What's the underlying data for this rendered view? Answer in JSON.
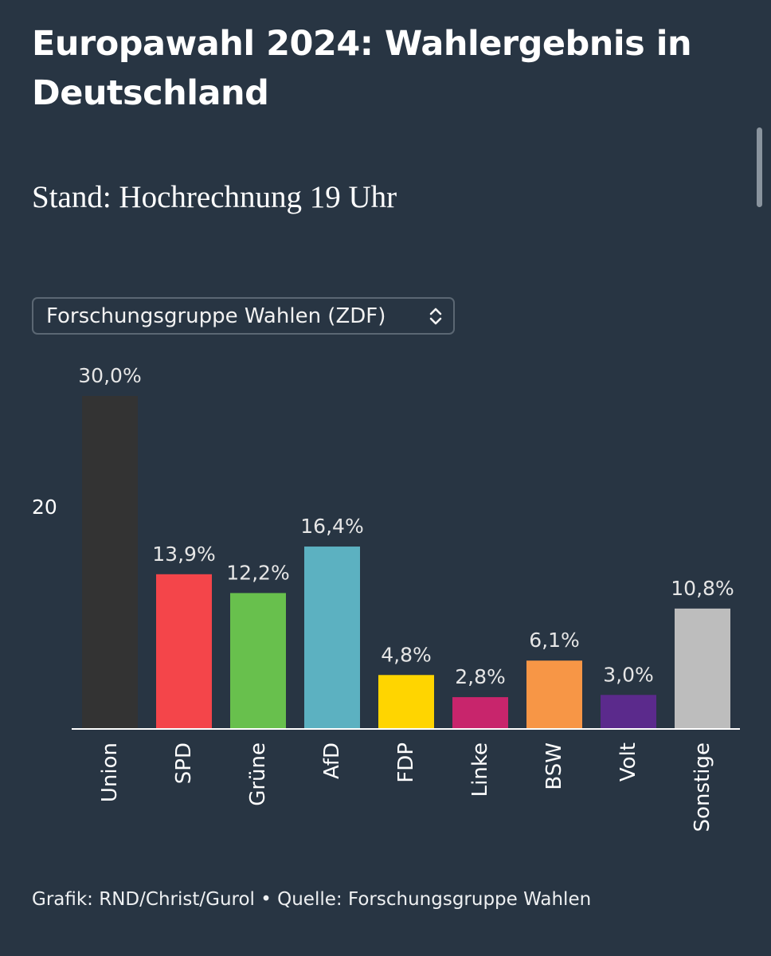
{
  "header": {
    "title": "Europawahl 2024: Wahlergebnis in Deutschland",
    "subtitle": "Stand: Hochrechnung 19 Uhr"
  },
  "selector": {
    "selected": "Forschungsgruppe Wahlen (ZDF)",
    "icon": "chevron-up-down-icon"
  },
  "footer": {
    "text": "Grafik: RND/Christ/Gurol • Quelle: Forschungsgruppe Wahlen"
  },
  "chart_data": {
    "type": "bar",
    "categories": [
      "Union",
      "SPD",
      "Grüne",
      "AfD",
      "FDP",
      "Linke",
      "BSW",
      "Volt",
      "Sonstige"
    ],
    "values": [
      30.0,
      13.9,
      12.2,
      16.4,
      4.8,
      2.8,
      6.1,
      3.0,
      10.8
    ],
    "value_labels": [
      "30,0%",
      "13,9%",
      "12,2%",
      "16,4%",
      "4,8%",
      "2,8%",
      "6,1%",
      "3,0%",
      "10,8%"
    ],
    "colors": [
      "#333333",
      "#f4454a",
      "#68c04d",
      "#5cb1c1",
      "#ffd500",
      "#c8256c",
      "#f79646",
      "#5b2a8c",
      "#bdbdbd"
    ],
    "yticks": [
      {
        "value": 20,
        "label": "20"
      }
    ],
    "ylim": [
      0,
      30
    ],
    "grid": false,
    "legend": "none",
    "xlabel": "",
    "ylabel": ""
  }
}
